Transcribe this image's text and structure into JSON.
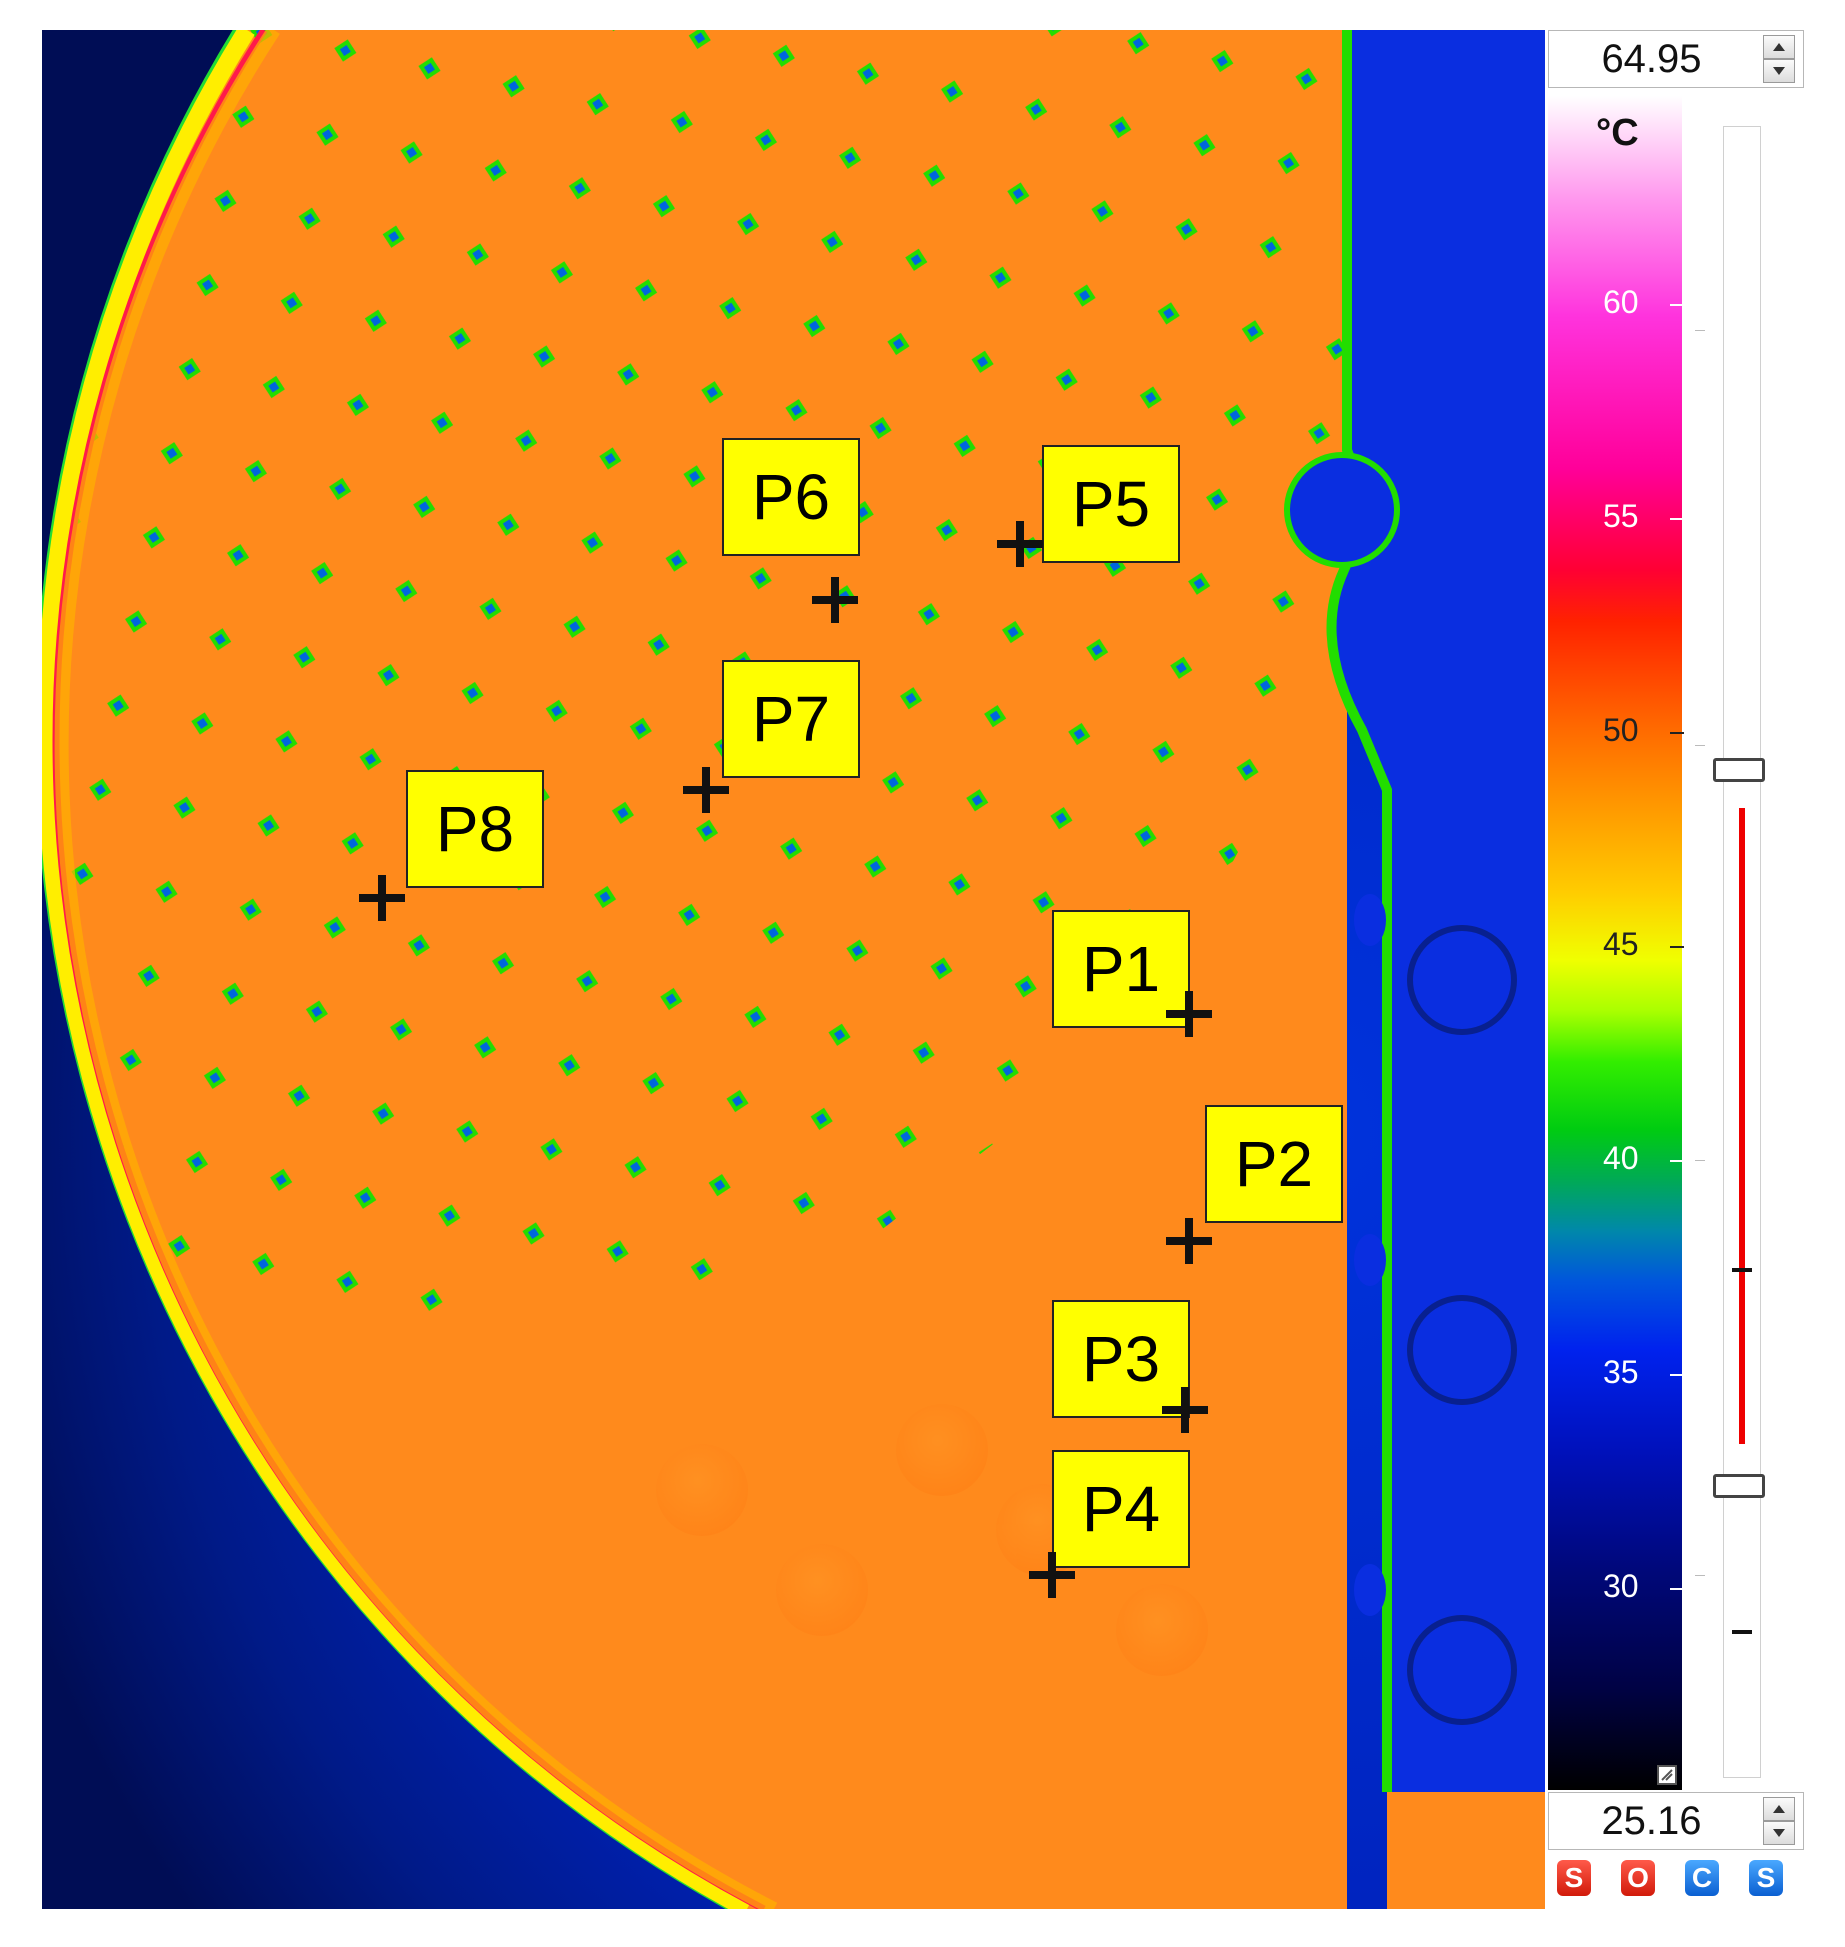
{
  "scale": {
    "max_value": "64.95",
    "min_value": "25.16",
    "unit": "°C",
    "ticks": [
      "60",
      "55",
      "50",
      "45",
      "40",
      "35",
      "30"
    ]
  },
  "markers": [
    {
      "label": "P1"
    },
    {
      "label": "P2"
    },
    {
      "label": "P3"
    },
    {
      "label": "P4"
    },
    {
      "label": "P5"
    },
    {
      "label": "P6"
    },
    {
      "label": "P7"
    },
    {
      "label": "P8"
    }
  ],
  "mode_buttons": [
    "S",
    "O",
    "C",
    "S"
  ],
  "colors": {
    "marker_label_bg": "#ffff00",
    "background_cold": "#0022cc",
    "bed_hot": "#ff8c1a",
    "void_green": "#22dd00",
    "wall_red": "#ff0044"
  }
}
